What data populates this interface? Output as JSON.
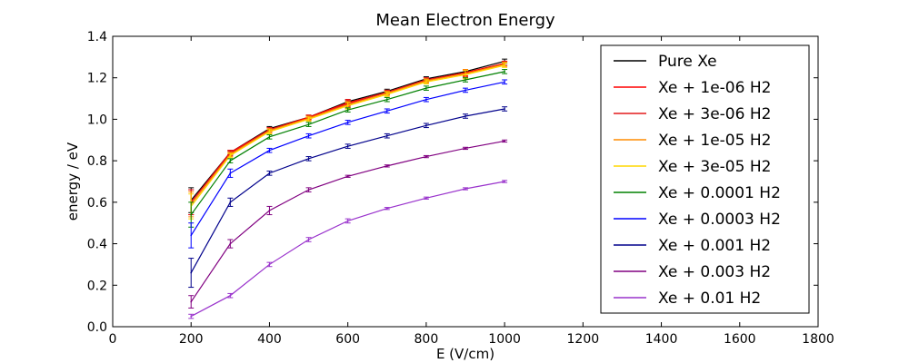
{
  "chart_data": {
    "type": "line",
    "title": "Mean Electron Energy",
    "xlabel": "E (V/cm)",
    "ylabel": "energy / eV",
    "xlim": [
      0,
      1800
    ],
    "ylim": [
      0.0,
      1.4
    ],
    "x_ticks": [
      "0",
      "200",
      "400",
      "600",
      "800",
      "1000",
      "1200",
      "1400",
      "1600",
      "1800"
    ],
    "y_ticks": [
      "0.0",
      "0.2",
      "0.4",
      "0.6",
      "0.8",
      "1.0",
      "1.2",
      "1.4"
    ],
    "grid": false,
    "legend_position": "top-right",
    "x": [
      200,
      300,
      400,
      500,
      600,
      700,
      800,
      900,
      1000
    ],
    "series": [
      {
        "name": "Pure Xe",
        "color": "#000000",
        "values": [
          0.61,
          0.84,
          0.955,
          1.01,
          1.085,
          1.135,
          1.195,
          1.23,
          1.28
        ],
        "errors": [
          0.06,
          0.01,
          0.01,
          0.01,
          0.01,
          0.01,
          0.01,
          0.01,
          0.01
        ]
      },
      {
        "name": "Xe + 1e-06 H2",
        "color": "#ff0000",
        "values": [
          0.6,
          0.84,
          0.95,
          1.01,
          1.08,
          1.13,
          1.19,
          1.225,
          1.27
        ],
        "errors": [
          0.06,
          0.01,
          0.01,
          0.01,
          0.015,
          0.01,
          0.01,
          0.015,
          0.01
        ]
      },
      {
        "name": "Xe + 3e-06 H2",
        "color": "#e31a1c",
        "values": [
          0.6,
          0.835,
          0.95,
          1.005,
          1.075,
          1.13,
          1.19,
          1.22,
          1.27
        ],
        "errors": [
          0.06,
          0.01,
          0.01,
          0.01,
          0.015,
          0.01,
          0.01,
          0.015,
          0.01
        ]
      },
      {
        "name": "Xe + 1e-05 H2",
        "color": "#ff8c00",
        "values": [
          0.59,
          0.83,
          0.945,
          1.005,
          1.07,
          1.125,
          1.185,
          1.22,
          1.265
        ],
        "errors": [
          0.06,
          0.01,
          0.01,
          0.01,
          0.015,
          0.01,
          0.01,
          0.02,
          0.01
        ]
      },
      {
        "name": "Xe + 3e-05 H2",
        "color": "#ffd700",
        "values": [
          0.58,
          0.825,
          0.94,
          1.0,
          1.065,
          1.12,
          1.18,
          1.215,
          1.26
        ],
        "errors": [
          0.06,
          0.01,
          0.01,
          0.01,
          0.015,
          0.01,
          0.01,
          0.02,
          0.01
        ]
      },
      {
        "name": "Xe + 0.0001 H2",
        "color": "#008000",
        "values": [
          0.54,
          0.8,
          0.915,
          0.975,
          1.045,
          1.095,
          1.15,
          1.19,
          1.23
        ],
        "errors": [
          0.06,
          0.01,
          0.01,
          0.01,
          0.01,
          0.01,
          0.01,
          0.01,
          0.01
        ]
      },
      {
        "name": "Xe + 0.0003 H2",
        "color": "#0000ff",
        "values": [
          0.44,
          0.74,
          0.85,
          0.92,
          0.985,
          1.04,
          1.095,
          1.14,
          1.18
        ],
        "errors": [
          0.06,
          0.02,
          0.01,
          0.01,
          0.01,
          0.01,
          0.01,
          0.01,
          0.01
        ]
      },
      {
        "name": "Xe + 0.001 H2",
        "color": "#00008b",
        "values": [
          0.26,
          0.6,
          0.74,
          0.81,
          0.87,
          0.92,
          0.97,
          1.015,
          1.05
        ],
        "errors": [
          0.07,
          0.02,
          0.01,
          0.01,
          0.01,
          0.01,
          0.01,
          0.01,
          0.01
        ]
      },
      {
        "name": "Xe + 0.003 H2",
        "color": "#800080",
        "values": [
          0.12,
          0.4,
          0.56,
          0.66,
          0.725,
          0.775,
          0.82,
          0.86,
          0.895
        ],
        "errors": [
          0.03,
          0.02,
          0.02,
          0.01,
          0.005,
          0.005,
          0.005,
          0.005,
          0.005
        ]
      },
      {
        "name": "Xe + 0.01 H2",
        "color": "#9932cc",
        "values": [
          0.05,
          0.15,
          0.3,
          0.42,
          0.51,
          0.57,
          0.62,
          0.665,
          0.7
        ],
        "errors": [
          0.01,
          0.01,
          0.01,
          0.01,
          0.01,
          0.005,
          0.005,
          0.005,
          0.005
        ]
      }
    ]
  }
}
